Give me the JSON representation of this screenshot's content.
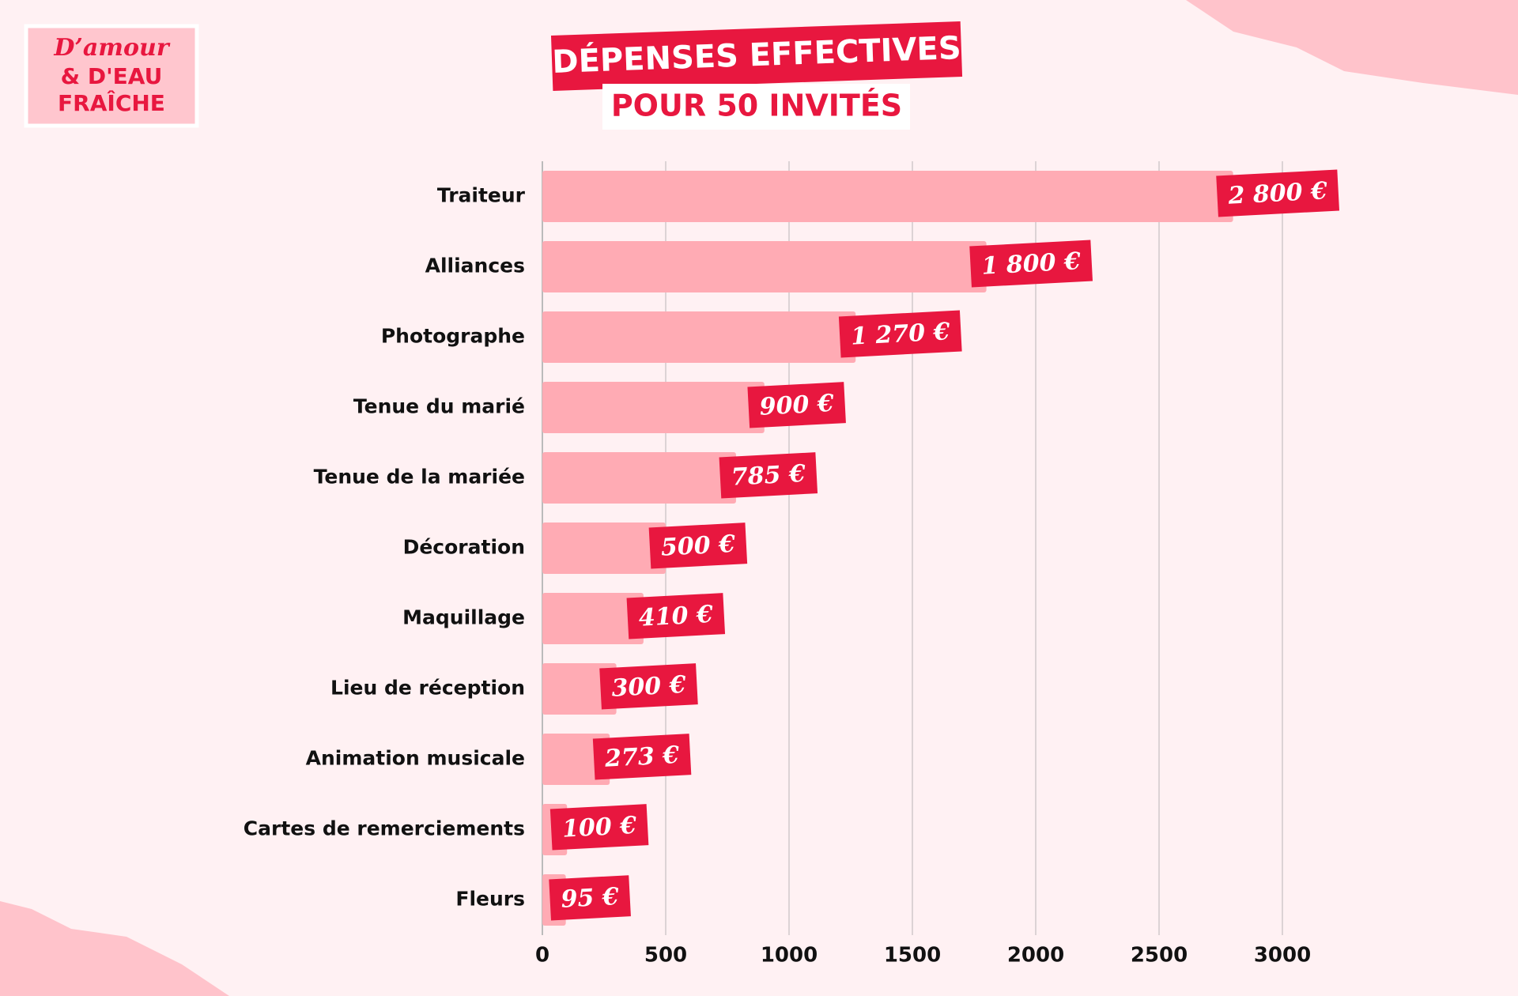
{
  "logo": [
    "D’amour",
    "& D'EAU",
    "FRAÎCHE"
  ],
  "chart_data": {
    "type": "bar",
    "orientation": "horizontal",
    "title": "DÉPENSES EFFECTIVES",
    "subtitle": "POUR 50 INVITÉS",
    "categories": [
      "Traiteur",
      "Alliances",
      "Photographe",
      "Tenue du marié",
      "Tenue de la mariée",
      "Décoration",
      "Maquillage",
      "Lieu de réception",
      "Animation musicale",
      "Cartes de remerciements",
      "Fleurs"
    ],
    "values": [
      2800,
      1800,
      1270,
      900,
      785,
      500,
      410,
      300,
      273,
      100,
      95
    ],
    "value_labels": [
      "2 800 €",
      "1 800 €",
      "1 270 €",
      "900 €",
      "785 €",
      "500 €",
      "410 €",
      "300 €",
      "273 €",
      "100 €",
      "95 €"
    ],
    "color": "#ffabb4",
    "label_color": "#e8173f",
    "xlim": [
      0,
      3000
    ],
    "xticks": [
      0,
      500,
      1000,
      1500,
      2000,
      2500,
      3000
    ],
    "grid": true
  }
}
